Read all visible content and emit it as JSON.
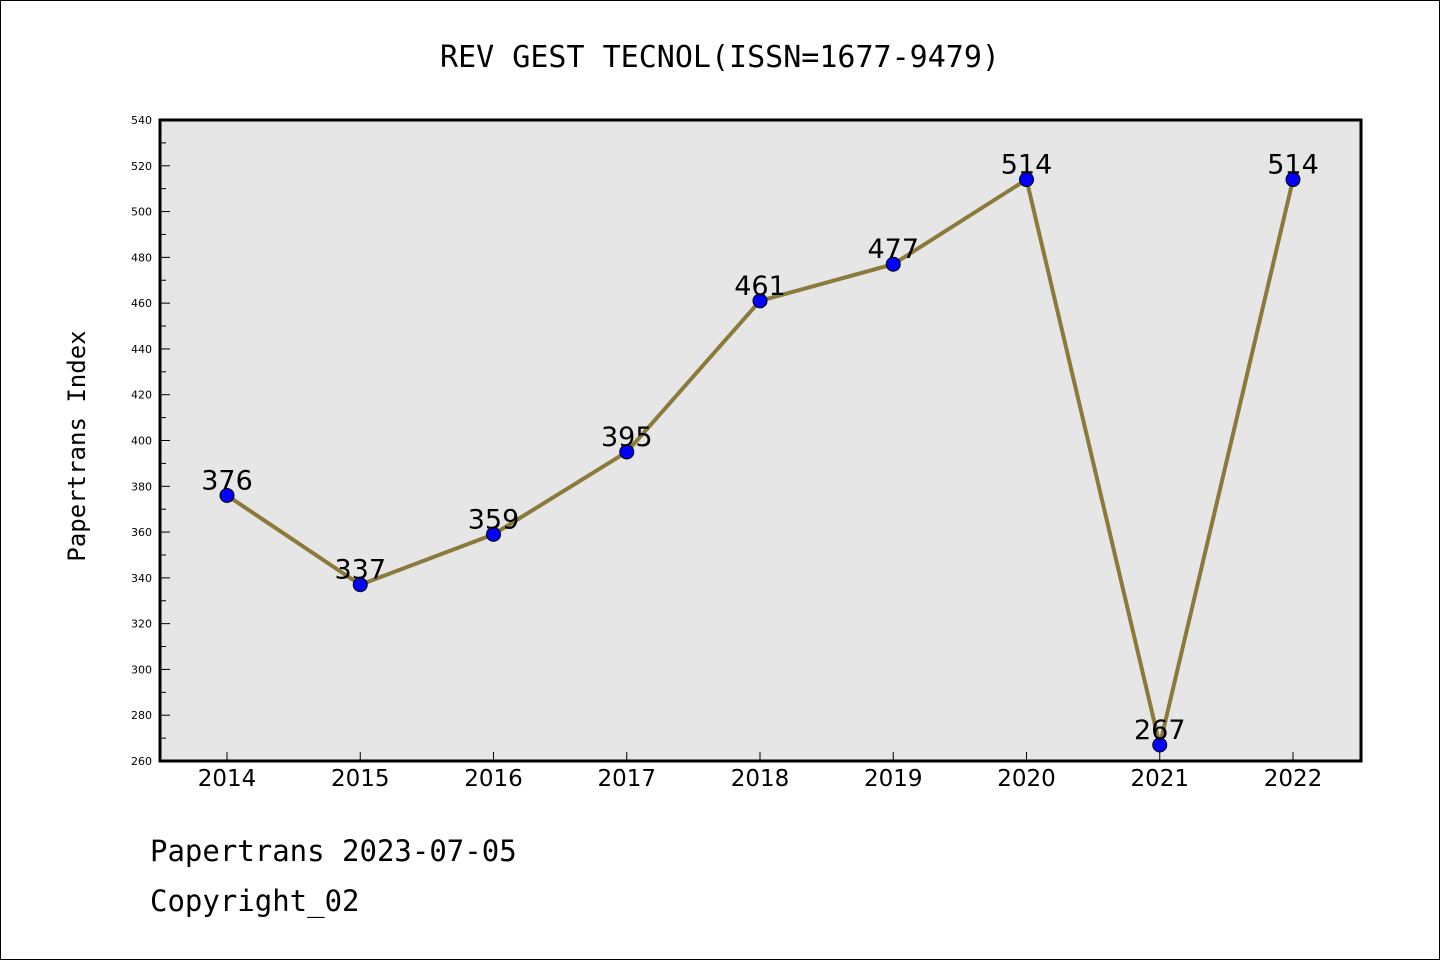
{
  "chart_data": {
    "type": "line",
    "title": "REV GEST TECNOL(ISSN=1677-9479)",
    "xlabel": "",
    "ylabel": "Papertrans Index",
    "categories": [
      "2014",
      "2015",
      "2016",
      "2017",
      "2018",
      "2019",
      "2020",
      "2021",
      "2022"
    ],
    "values": [
      376,
      337,
      359,
      395,
      461,
      477,
      514,
      267,
      514
    ],
    "ylim": [
      260,
      540
    ],
    "ytick_step": 20,
    "y_minor_step": 10,
    "grid": false,
    "line_color": "#8b7b3a",
    "marker_color": "#0000ff",
    "plot_background": "#e6e6e6",
    "data_labels": true
  },
  "footer": {
    "date_line": "Papertrans 2023-07-05",
    "copyright": "Copyright_02"
  }
}
